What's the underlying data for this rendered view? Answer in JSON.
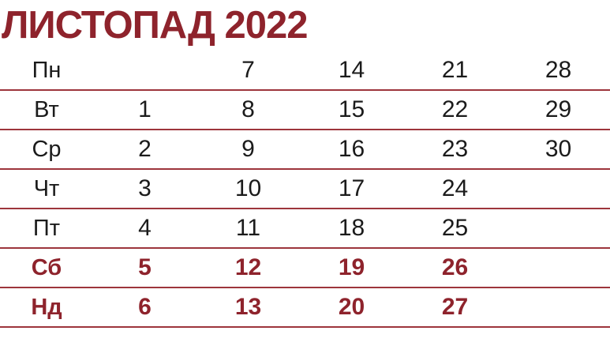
{
  "title": "ЛИСТОПАД 2022",
  "colors": {
    "title_red": "#8E232C",
    "separator_line_red": "#9D353C",
    "weekend_red": "#8E232C",
    "weekday_black": "#1B1B1B",
    "background": "#FFFFFF"
  },
  "calendar": {
    "month": "ЛИСТОПАД",
    "year": "2022",
    "rows": [
      {
        "label": "Пн",
        "weekend": false,
        "cells": [
          "",
          "7",
          "14",
          "21",
          "28"
        ]
      },
      {
        "label": "Вт",
        "weekend": false,
        "cells": [
          "1",
          "8",
          "15",
          "22",
          "29"
        ]
      },
      {
        "label": "Ср",
        "weekend": false,
        "cells": [
          "2",
          "9",
          "16",
          "23",
          "30"
        ]
      },
      {
        "label": "Чт",
        "weekend": false,
        "cells": [
          "3",
          "10",
          "17",
          "24",
          ""
        ]
      },
      {
        "label": "Пт",
        "weekend": false,
        "cells": [
          "4",
          "11",
          "18",
          "25",
          ""
        ]
      },
      {
        "label": "Сб",
        "weekend": true,
        "cells": [
          "5",
          "12",
          "19",
          "26",
          ""
        ]
      },
      {
        "label": "Нд",
        "weekend": true,
        "cells": [
          "6",
          "13",
          "20",
          "27",
          ""
        ]
      }
    ]
  }
}
